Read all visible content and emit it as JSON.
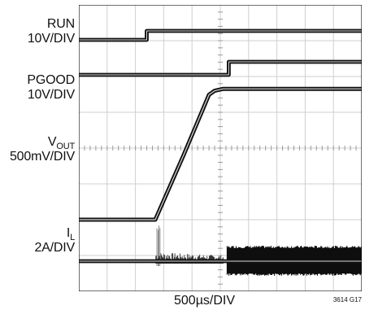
{
  "chart_data": {
    "type": "line",
    "title": "",
    "xlabel": "500µs/DIV",
    "xdiv_us": 500,
    "x_range_us": [
      0,
      5000
    ],
    "grid": true,
    "grid_divisions": {
      "x": 10,
      "y": 8
    },
    "figure_id": "3614 G17",
    "channels": [
      {
        "name": "RUN",
        "name_display": {
          "main": "RUN",
          "sub": ""
        },
        "scale": "10V/DIV",
        "trace_width": 3.2,
        "points": [
          [
            0,
            0
          ],
          [
            1200,
            0
          ],
          [
            1200,
            1
          ],
          [
            5000,
            1
          ]
        ]
      },
      {
        "name": "PGOOD",
        "name_display": {
          "main": "PGOOD",
          "sub": ""
        },
        "scale": "10V/DIV",
        "trace_width": 3.2,
        "points": [
          [
            0,
            0
          ],
          [
            2650,
            0
          ],
          [
            2650,
            1
          ],
          [
            5000,
            1
          ]
        ]
      },
      {
        "name": "VOUT",
        "name_display": {
          "main": "V",
          "sub": "OUT"
        },
        "scale": "500mV/DIV",
        "trace_width": 3.4,
        "points": [
          [
            0,
            0
          ],
          [
            1350,
            0
          ],
          [
            1850,
            0.33
          ],
          [
            2300,
            0.64
          ],
          [
            2400,
            0.66
          ],
          [
            2550,
            0.67
          ],
          [
            2650,
            0.67
          ],
          [
            5000,
            0.67
          ]
        ]
      },
      {
        "name": "IL",
        "name_display": {
          "main": "I",
          "sub": "L"
        },
        "scale": "2A/DIV",
        "trace_width": 3.2,
        "points": [
          [
            0,
            0
          ],
          [
            5000,
            0
          ]
        ]
      }
    ]
  }
}
